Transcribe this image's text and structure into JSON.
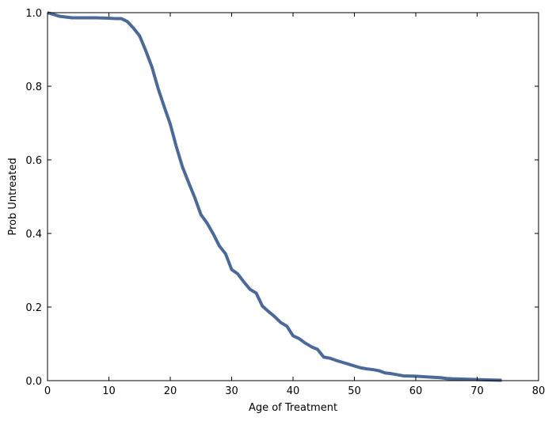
{
  "chart_data": {
    "type": "line",
    "title": "",
    "xlabel": "Age of Treatment",
    "ylabel": "Prob Untreated",
    "xlim": [
      0,
      80
    ],
    "ylim": [
      0.0,
      1.0
    ],
    "xticks": [
      0,
      10,
      20,
      30,
      40,
      50,
      60,
      70,
      80
    ],
    "xtick_labels": [
      "0",
      "10",
      "20",
      "30",
      "40",
      "50",
      "60",
      "70",
      "80"
    ],
    "yticks": [
      0.0,
      0.2,
      0.4,
      0.6,
      0.8,
      1.0
    ],
    "ytick_labels": [
      "0.0",
      "0.2",
      "0.4",
      "0.6",
      "0.8",
      "1.0"
    ],
    "grid": false,
    "series": [
      {
        "color": "#4c6a98",
        "x": [
          0,
          1,
          2,
          4,
          6,
          8,
          10,
          11,
          12,
          13,
          14,
          15,
          16,
          17,
          18,
          19,
          20,
          21,
          22,
          23,
          24,
          25,
          26,
          27,
          28,
          29,
          30,
          31,
          32,
          33,
          34,
          35,
          36,
          37,
          38,
          39,
          40,
          41,
          42,
          43,
          44,
          45,
          46,
          47,
          48,
          49,
          50,
          51,
          52,
          53,
          54,
          55,
          56,
          57,
          58,
          60,
          62,
          64,
          65,
          66,
          68,
          70,
          72,
          74
        ],
        "y": [
          1.0,
          0.995,
          0.99,
          0.986,
          0.986,
          0.986,
          0.985,
          0.984,
          0.984,
          0.976,
          0.958,
          0.937,
          0.897,
          0.853,
          0.795,
          0.745,
          0.697,
          0.635,
          0.58,
          0.538,
          0.497,
          0.451,
          0.428,
          0.399,
          0.366,
          0.345,
          0.302,
          0.29,
          0.268,
          0.248,
          0.238,
          0.203,
          0.188,
          0.174,
          0.158,
          0.148,
          0.122,
          0.114,
          0.102,
          0.092,
          0.085,
          0.064,
          0.061,
          0.055,
          0.05,
          0.045,
          0.04,
          0.035,
          0.032,
          0.03,
          0.027,
          0.021,
          0.019,
          0.016,
          0.013,
          0.012,
          0.01,
          0.008,
          0.006,
          0.005,
          0.004,
          0.003,
          0.002,
          0.001
        ]
      }
    ]
  }
}
